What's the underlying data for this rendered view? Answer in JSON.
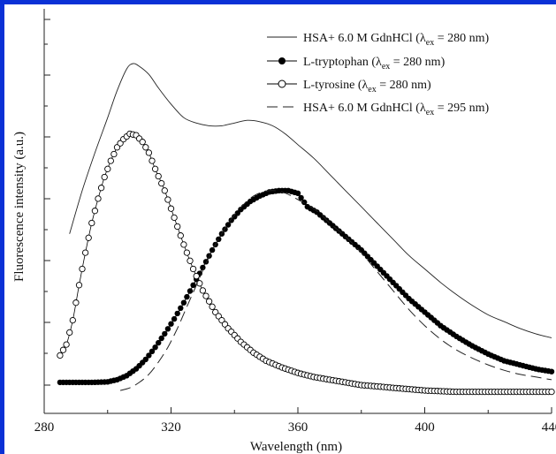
{
  "chart_data": {
    "type": "line",
    "xlabel": "Wavelength (nm)",
    "ylabel": "Fluorescence intensity (a.u.)",
    "xlim": [
      280,
      440
    ],
    "x_ticks": [
      "280",
      "320",
      "360",
      "400",
      "440"
    ],
    "y_ticks_labeled": false,
    "legend_position": "top-right",
    "series": [
      {
        "name": "HSA+ 6.0 M GdnHCl (λex = 280 nm)",
        "name_parts": {
          "base": "HSA+ 6.0 M GdnHCl (λ",
          "sub": "ex",
          "tail": " = 280 nm)"
        },
        "style": "thin-solid",
        "x": [
          288,
          292,
          296,
          300,
          303,
          306,
          308,
          310,
          313,
          316,
          320,
          324,
          328,
          332,
          336,
          340,
          344,
          348,
          352,
          356,
          360,
          365,
          370,
          375,
          380,
          385,
          390,
          395,
          400,
          405,
          410,
          415,
          420,
          425,
          430,
          435,
          440
        ],
        "y": [
          0.56,
          0.72,
          0.86,
          0.99,
          1.09,
          1.17,
          1.19,
          1.18,
          1.15,
          1.1,
          1.04,
          0.99,
          0.97,
          0.96,
          0.96,
          0.97,
          0.98,
          0.975,
          0.96,
          0.93,
          0.89,
          0.84,
          0.78,
          0.72,
          0.66,
          0.6,
          0.54,
          0.48,
          0.43,
          0.38,
          0.335,
          0.295,
          0.26,
          0.235,
          0.21,
          0.19,
          0.175
        ]
      },
      {
        "name": "L-tryptophan (λex = 280 nm)",
        "name_parts": {
          "base": "L-tryptophan (λ",
          "sub": "ex",
          "tail": " = 280 nm)"
        },
        "style": "filled-circles",
        "x": [
          285,
          290,
          295,
          300,
          303,
          306,
          309,
          312,
          315,
          318,
          321,
          324,
          327,
          330,
          333,
          336,
          339,
          342,
          345,
          348,
          351,
          354,
          357,
          360,
          363,
          366,
          370,
          375,
          380,
          385,
          390,
          395,
          400,
          405,
          410,
          415,
          420,
          425,
          430,
          435,
          440
        ],
        "y": [
          0.01,
          0.01,
          0.01,
          0.012,
          0.02,
          0.035,
          0.06,
          0.095,
          0.14,
          0.19,
          0.245,
          0.305,
          0.37,
          0.435,
          0.5,
          0.56,
          0.61,
          0.65,
          0.68,
          0.7,
          0.715,
          0.72,
          0.72,
          0.71,
          0.66,
          0.64,
          0.6,
          0.55,
          0.5,
          0.44,
          0.38,
          0.32,
          0.27,
          0.22,
          0.18,
          0.145,
          0.115,
          0.09,
          0.075,
          0.06,
          0.05
        ]
      },
      {
        "name": "L-tyrosine (λex = 280 nm)",
        "name_parts": {
          "base": "L-tyrosine (λ",
          "sub": "ex",
          "tail": " = 280 nm)"
        },
        "style": "open-circles",
        "x": [
          285,
          287,
          289,
          291,
          293,
          295,
          297,
          299,
          301,
          303,
          305,
          307,
          309,
          311,
          313,
          315,
          318,
          321,
          324,
          327,
          330,
          334,
          338,
          342,
          346,
          350,
          355,
          360,
          365,
          370,
          380,
          390,
          400,
          410,
          420,
          430,
          440
        ],
        "y": [
          0.11,
          0.15,
          0.24,
          0.37,
          0.49,
          0.6,
          0.69,
          0.77,
          0.83,
          0.88,
          0.91,
          0.93,
          0.925,
          0.9,
          0.86,
          0.8,
          0.72,
          0.62,
          0.52,
          0.43,
          0.35,
          0.27,
          0.21,
          0.16,
          0.12,
          0.09,
          0.065,
          0.045,
          0.03,
          0.02,
          0.0,
          -0.01,
          -0.02,
          -0.025,
          -0.025,
          -0.025,
          -0.025
        ]
      },
      {
        "name": "HSA+ 6.0 M GdnHCl (λex = 295 nm)",
        "name_parts": {
          "base": "HSA+ 6.0 M GdnHCl (λ",
          "sub": "ex",
          "tail": " = 295 nm)"
        },
        "style": "dashed",
        "x": [
          304,
          307,
          310,
          313,
          316,
          319,
          322,
          325,
          328,
          331,
          334,
          337,
          340,
          343,
          346,
          349,
          352,
          355,
          358,
          361,
          364,
          367,
          370,
          375,
          380,
          385,
          390,
          395,
          400,
          405,
          410,
          415,
          420,
          425,
          430,
          435,
          440
        ],
        "y": [
          -0.02,
          -0.01,
          0.01,
          0.04,
          0.085,
          0.14,
          0.21,
          0.29,
          0.37,
          0.45,
          0.52,
          0.58,
          0.63,
          0.67,
          0.7,
          0.715,
          0.72,
          0.715,
          0.7,
          0.68,
          0.66,
          0.635,
          0.6,
          0.55,
          0.49,
          0.42,
          0.35,
          0.28,
          0.22,
          0.17,
          0.13,
          0.1,
          0.075,
          0.055,
          0.04,
          0.03,
          0.02
        ]
      }
    ]
  }
}
